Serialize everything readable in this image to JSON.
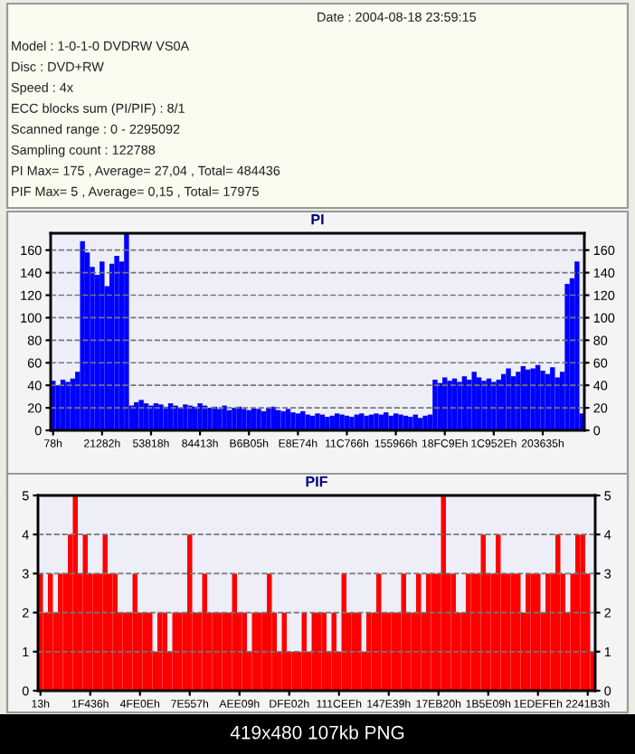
{
  "chart_data": [
    {
      "type": "other",
      "annotations": [
        "Date : 2004-08-18 23:59:15",
        "Model : 1-0-1-0 DVDRW VS0A",
        "Disc : DVD+RW",
        "Speed : 4x",
        "ECC blocks sum (PI/PIF) : 8/1",
        "Scanned range : 0 - 2295092",
        "Sampling count : 122788",
        "PI Max= 175 , Average= 27,04 , Total= 484436",
        "PIF Max= 5 , Average= 0,15 , Total= 17975"
      ]
    },
    {
      "type": "bar",
      "title": "PI",
      "color": "#0000ff",
      "grid": "y",
      "line_style": "dashed",
      "categories": [
        "78h",
        null,
        null,
        null,
        null,
        null,
        null,
        null,
        null,
        null,
        "21282h",
        null,
        null,
        null,
        null,
        null,
        null,
        null,
        null,
        null,
        "53818h",
        null,
        null,
        null,
        null,
        null,
        null,
        null,
        null,
        null,
        "84413h",
        null,
        null,
        null,
        null,
        null,
        null,
        null,
        null,
        null,
        "B6B05h",
        null,
        null,
        null,
        null,
        null,
        null,
        null,
        null,
        null,
        "E8E74h",
        null,
        null,
        null,
        null,
        null,
        null,
        null,
        null,
        null,
        "11C766h",
        null,
        null,
        null,
        null,
        null,
        null,
        null,
        null,
        null,
        "155966h",
        null,
        null,
        null,
        null,
        null,
        null,
        null,
        null,
        null,
        "18FC9Eh",
        null,
        null,
        null,
        null,
        null,
        null,
        null,
        null,
        null,
        "1C952Eh",
        null,
        null,
        null,
        null,
        null,
        null,
        null,
        null,
        null,
        "203635h",
        null,
        null,
        null,
        null,
        null,
        null,
        null,
        null
      ],
      "values": [
        44,
        40,
        45,
        43,
        46,
        52,
        168,
        158,
        145,
        138,
        150,
        128,
        148,
        155,
        150,
        175,
        22,
        25,
        27,
        24,
        22,
        24,
        23,
        21,
        24,
        22,
        20,
        23,
        22,
        21,
        24,
        22,
        20,
        21,
        19,
        22,
        18,
        20,
        21,
        19,
        18,
        20,
        19,
        17,
        20,
        21,
        18,
        17,
        19,
        16,
        15,
        17,
        14,
        13,
        15,
        14,
        12,
        13,
        15,
        14,
        13,
        12,
        14,
        15,
        13,
        14,
        15,
        14,
        16,
        13,
        15,
        14,
        13,
        12,
        14,
        11,
        13,
        14,
        45,
        42,
        47,
        44,
        46,
        43,
        48,
        45,
        52,
        47,
        44,
        46,
        43,
        45,
        50,
        55,
        48,
        52,
        57,
        54,
        55,
        58,
        53,
        50,
        56,
        47,
        52,
        130,
        135,
        150,
        15
      ],
      "ylim": [
        0,
        175
      ],
      "yticks": [
        0,
        20,
        40,
        60,
        80,
        100,
        120,
        140,
        160
      ],
      "y2lim": [
        0,
        175
      ],
      "y2ticks": [
        0,
        20,
        40,
        60,
        80,
        100,
        120,
        140,
        160
      ]
    },
    {
      "type": "bar",
      "title": "PIF",
      "color": "#ff0000",
      "grid": "y",
      "line_style": "dashed",
      "categories": [
        "13h",
        null,
        null,
        null,
        null,
        null,
        null,
        null,
        null,
        null,
        "1F436h",
        null,
        null,
        null,
        null,
        null,
        null,
        null,
        null,
        null,
        "4FE0Eh",
        null,
        null,
        null,
        null,
        null,
        null,
        null,
        null,
        null,
        "7E557h",
        null,
        null,
        null,
        null,
        null,
        null,
        null,
        null,
        null,
        "AEE09h",
        null,
        null,
        null,
        null,
        null,
        null,
        null,
        null,
        null,
        "DFE02h",
        null,
        null,
        null,
        null,
        null,
        null,
        null,
        null,
        null,
        "111CEEh",
        null,
        null,
        null,
        null,
        null,
        null,
        null,
        null,
        null,
        "147E39h",
        null,
        null,
        null,
        null,
        null,
        null,
        null,
        null,
        null,
        "17EB20h",
        null,
        null,
        null,
        null,
        null,
        null,
        null,
        null,
        null,
        "1B5E09h",
        null,
        null,
        null,
        null,
        null,
        null,
        null,
        null,
        null,
        "1EDEFEh",
        null,
        null,
        null,
        null,
        null,
        null,
        null,
        null,
        null,
        "2241B3h",
        null
      ],
      "values": [
        3,
        2,
        3,
        2,
        3,
        3,
        4,
        5,
        3,
        4,
        3,
        3,
        3,
        4,
        3,
        3,
        2,
        2,
        2,
        3,
        2,
        2,
        2,
        1,
        2,
        2,
        1,
        2,
        2,
        2,
        4,
        2,
        2,
        3,
        2,
        2,
        2,
        2,
        2,
        3,
        2,
        2,
        1,
        2,
        2,
        2,
        3,
        2,
        1,
        2,
        1,
        1,
        1,
        2,
        1,
        2,
        2,
        2,
        1,
        2,
        1,
        3,
        2,
        2,
        2,
        1,
        2,
        2,
        3,
        2,
        2,
        2,
        2,
        3,
        2,
        2,
        3,
        2,
        3,
        3,
        3,
        5,
        3,
        3,
        2,
        2,
        3,
        3,
        3,
        4,
        3,
        3,
        4,
        3,
        3,
        3,
        3,
        2,
        3,
        3,
        3,
        2,
        3,
        3,
        4,
        3,
        2,
        3,
        4,
        4,
        3,
        1
      ],
      "ylim": [
        0,
        5
      ],
      "yticks": [
        0,
        1,
        2,
        3,
        4,
        5
      ],
      "y2lim": [
        0,
        5
      ],
      "y2ticks": [
        0,
        1,
        2,
        3,
        4,
        5
      ],
      "annotations": [
        "419x480 107kb PNG"
      ]
    }
  ]
}
